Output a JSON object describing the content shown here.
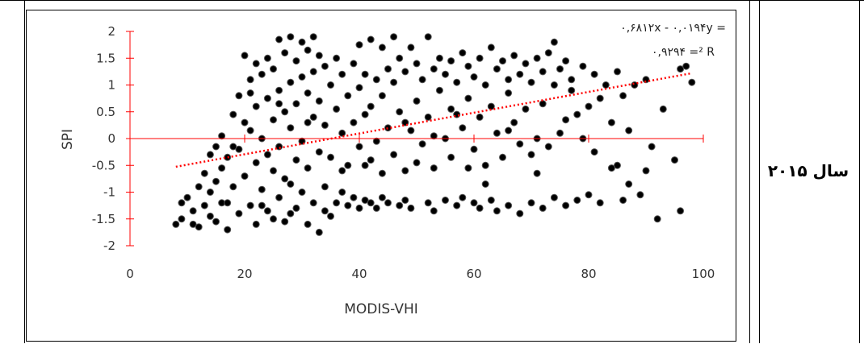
{
  "table": {
    "row_label": "سال ۲۰۱۵"
  },
  "chart_data": {
    "type": "scatter",
    "title": "",
    "xlabel": "MODIS-VHI",
    "ylabel": "SPI",
    "xlim": [
      0,
      100
    ],
    "ylim": [
      -2,
      2
    ],
    "x_ticks": [
      "0",
      "20",
      "40",
      "60",
      "80",
      "100"
    ],
    "y_ticks": [
      "2",
      "1.5",
      "1",
      "0.5",
      "0",
      "-0.5",
      "-1",
      "-1.5",
      "-2"
    ],
    "trendline": {
      "slope": 0.0194,
      "intercept": -0.6812,
      "x_range": [
        8,
        98
      ],
      "style": "dotted",
      "color": "#ff0000"
    },
    "annotations": {
      "equation": "۰,۶۸۱۲x - ۰,۰۱۹۴y =",
      "r_squared": "۰,۹۲۹۴ =² R"
    },
    "colors": {
      "axis": "#ff0000",
      "point_fill": "#000000",
      "point_edge": "#555555"
    },
    "marker_size": 4,
    "grid": false,
    "legend": "none",
    "series": [
      {
        "points": [
          [
            8,
            -1.6
          ],
          [
            9,
            -1.5
          ],
          [
            10,
            -1.1
          ],
          [
            11,
            -1.35
          ],
          [
            12,
            -0.9
          ],
          [
            12,
            -1.65
          ],
          [
            13,
            -0.65
          ],
          [
            13,
            -1.25
          ],
          [
            14,
            -0.3
          ],
          [
            14,
            -1.45
          ],
          [
            15,
            -0.15
          ],
          [
            15,
            -0.8
          ],
          [
            15,
            -1.55
          ],
          [
            16,
            0.05
          ],
          [
            16,
            -0.55
          ],
          [
            16,
            -1.2
          ],
          [
            17,
            -0.35
          ],
          [
            17,
            -1.7
          ],
          [
            18,
            0.45
          ],
          [
            18,
            -0.9
          ],
          [
            19,
            0.8
          ],
          [
            19,
            -0.2
          ],
          [
            19,
            -1.4
          ],
          [
            20,
            1.55
          ],
          [
            20,
            0.3
          ],
          [
            20,
            -0.7
          ],
          [
            21,
            1.1
          ],
          [
            21,
            0.15
          ],
          [
            21,
            -1.25
          ],
          [
            22,
            1.4
          ],
          [
            22,
            0.6
          ],
          [
            22,
            -0.45
          ],
          [
            22,
            -1.6
          ],
          [
            23,
            1.2
          ],
          [
            23,
            0.0
          ],
          [
            23,
            -0.95
          ],
          [
            24,
            1.5
          ],
          [
            24,
            0.75
          ],
          [
            24,
            -0.3
          ],
          [
            24,
            -1.35
          ],
          [
            25,
            1.3
          ],
          [
            25,
            0.35
          ],
          [
            25,
            -0.6
          ],
          [
            25,
            -1.5
          ],
          [
            26,
            1.85
          ],
          [
            26,
            0.9
          ],
          [
            26,
            -0.15
          ],
          [
            26,
            -1.1
          ],
          [
            27,
            1.6
          ],
          [
            27,
            0.5
          ],
          [
            27,
            -0.75
          ],
          [
            27,
            -1.55
          ],
          [
            28,
            1.9
          ],
          [
            28,
            1.05
          ],
          [
            28,
            0.2
          ],
          [
            28,
            -0.85
          ],
          [
            29,
            1.45
          ],
          [
            29,
            0.65
          ],
          [
            29,
            -0.4
          ],
          [
            29,
            -1.3
          ],
          [
            30,
            1.8
          ],
          [
            30,
            1.15
          ],
          [
            30,
            -0.05
          ],
          [
            30,
            -1.0
          ],
          [
            31,
            1.65
          ],
          [
            31,
            0.85
          ],
          [
            31,
            -0.55
          ],
          [
            31,
            -1.6
          ],
          [
            32,
            1.9
          ],
          [
            32,
            1.25
          ],
          [
            32,
            0.4
          ],
          [
            32,
            -1.2
          ],
          [
            33,
            1.55
          ],
          [
            33,
            0.7
          ],
          [
            33,
            -0.25
          ],
          [
            33,
            -1.75
          ],
          [
            34,
            1.35
          ],
          [
            34,
            0.25
          ],
          [
            34,
            -0.9
          ],
          [
            35,
            1.0
          ],
          [
            35,
            -0.35
          ],
          [
            35,
            -1.45
          ],
          [
            36,
            1.5
          ],
          [
            36,
            0.55
          ],
          [
            36,
            -1.2
          ],
          [
            37,
            1.2
          ],
          [
            37,
            0.1
          ],
          [
            37,
            -1.0
          ],
          [
            38,
            0.8
          ],
          [
            38,
            -0.5
          ],
          [
            38,
            -1.25
          ],
          [
            39,
            1.4
          ],
          [
            39,
            0.3
          ],
          [
            39,
            -1.1
          ],
          [
            40,
            1.75
          ],
          [
            40,
            0.95
          ],
          [
            40,
            -0.15
          ],
          [
            40,
            -1.3
          ],
          [
            41,
            1.2
          ],
          [
            41,
            0.45
          ],
          [
            41,
            -1.15
          ],
          [
            42,
            1.85
          ],
          [
            42,
            0.6
          ],
          [
            42,
            -0.4
          ],
          [
            42,
            -1.2
          ],
          [
            43,
            1.1
          ],
          [
            43,
            -0.05
          ],
          [
            43,
            -1.3
          ],
          [
            44,
            1.7
          ],
          [
            44,
            0.8
          ],
          [
            44,
            -1.1
          ],
          [
            45,
            1.3
          ],
          [
            45,
            0.2
          ],
          [
            45,
            -1.2
          ],
          [
            46,
            1.9
          ],
          [
            46,
            1.05
          ],
          [
            46,
            -0.3
          ],
          [
            47,
            1.5
          ],
          [
            47,
            0.5
          ],
          [
            47,
            -1.25
          ],
          [
            48,
            1.25
          ],
          [
            48,
            -0.6
          ],
          [
            48,
            -1.15
          ],
          [
            49,
            1.7
          ],
          [
            49,
            0.15
          ],
          [
            49,
            -1.3
          ],
          [
            50,
            1.4
          ],
          [
            50,
            0.7
          ],
          [
            50,
            -0.45
          ],
          [
            51,
            1.1
          ],
          [
            51,
            -0.1
          ],
          [
            52,
            1.9
          ],
          [
            52,
            0.4
          ],
          [
            52,
            -1.2
          ],
          [
            53,
            1.3
          ],
          [
            53,
            -0.55
          ],
          [
            53,
            -1.35
          ],
          [
            54,
            1.5
          ],
          [
            54,
            0.9
          ],
          [
            55,
            1.2
          ],
          [
            55,
            0.0
          ],
          [
            55,
            -1.15
          ],
          [
            56,
            1.45
          ],
          [
            56,
            0.55
          ],
          [
            56,
            -0.35
          ],
          [
            57,
            1.05
          ],
          [
            57,
            -1.25
          ],
          [
            58,
            1.6
          ],
          [
            58,
            0.2
          ],
          [
            58,
            -1.1
          ],
          [
            59,
            1.35
          ],
          [
            59,
            0.75
          ],
          [
            59,
            -0.55
          ],
          [
            60,
            1.15
          ],
          [
            60,
            -0.2
          ],
          [
            60,
            -1.2
          ],
          [
            61,
            1.5
          ],
          [
            61,
            0.4
          ],
          [
            61,
            -1.3
          ],
          [
            62,
            1.0
          ],
          [
            62,
            -0.5
          ],
          [
            63,
            1.7
          ],
          [
            63,
            0.6
          ],
          [
            63,
            -1.15
          ],
          [
            64,
            1.3
          ],
          [
            64,
            0.1
          ],
          [
            64,
            -1.35
          ],
          [
            65,
            1.45
          ],
          [
            65,
            -0.35
          ],
          [
            66,
            1.1
          ],
          [
            66,
            0.85
          ],
          [
            66,
            -1.25
          ],
          [
            67,
            1.55
          ],
          [
            67,
            0.3
          ],
          [
            68,
            1.2
          ],
          [
            68,
            -0.1
          ],
          [
            68,
            -1.4
          ],
          [
            69,
            1.4
          ],
          [
            69,
            0.55
          ],
          [
            70,
            1.05
          ],
          [
            70,
            -0.3
          ],
          [
            70,
            -1.2
          ],
          [
            71,
            1.5
          ],
          [
            71,
            0.0
          ],
          [
            72,
            1.25
          ],
          [
            72,
            0.65
          ],
          [
            72,
            -1.3
          ],
          [
            73,
            1.6
          ],
          [
            73,
            -0.15
          ],
          [
            74,
            1.8
          ],
          [
            74,
            1.0
          ],
          [
            74,
            -1.1
          ],
          [
            75,
            1.3
          ],
          [
            75,
            0.1
          ],
          [
            76,
            1.45
          ],
          [
            76,
            -1.25
          ],
          [
            77,
            1.1
          ],
          [
            77,
            0.9
          ],
          [
            78,
            0.45
          ],
          [
            78,
            -1.15
          ],
          [
            79,
            1.35
          ],
          [
            79,
            0.0
          ],
          [
            80,
            0.6
          ],
          [
            80,
            -1.05
          ],
          [
            81,
            1.2
          ],
          [
            82,
            0.75
          ],
          [
            82,
            -1.2
          ],
          [
            83,
            1.0
          ],
          [
            84,
            0.3
          ],
          [
            85,
            1.25
          ],
          [
            85,
            -0.5
          ],
          [
            86,
            0.8
          ],
          [
            86,
            -1.15
          ],
          [
            87,
            0.15
          ],
          [
            88,
            1.0
          ],
          [
            89,
            -1.05
          ],
          [
            90,
            1.1
          ],
          [
            91,
            -0.15
          ],
          [
            92,
            -1.5
          ],
          [
            95,
            -0.4
          ],
          [
            96,
            1.3
          ],
          [
            97,
            1.35
          ],
          [
            98,
            1.05
          ],
          [
            96,
            -1.35
          ],
          [
            93,
            0.55
          ],
          [
            90,
            -0.6
          ],
          [
            87,
            -0.85
          ],
          [
            84,
            -0.55
          ],
          [
            81,
            -0.25
          ],
          [
            76,
            0.35
          ],
          [
            71,
            -0.65
          ],
          [
            66,
            0.15
          ],
          [
            62,
            -0.85
          ],
          [
            57,
            0.45
          ],
          [
            53,
            0.05
          ],
          [
            48,
            0.3
          ],
          [
            44,
            -0.65
          ],
          [
            41,
            -0.5
          ],
          [
            37,
            -0.6
          ],
          [
            34,
            -1.35
          ],
          [
            31,
            0.3
          ],
          [
            28,
            -1.4
          ],
          [
            26,
            0.65
          ],
          [
            23,
            -1.25
          ],
          [
            21,
            0.85
          ],
          [
            18,
            -0.15
          ],
          [
            17,
            -1.2
          ],
          [
            14,
            -1.0
          ],
          [
            11,
            -1.6
          ],
          [
            9,
            -1.2
          ]
        ]
      }
    ]
  }
}
